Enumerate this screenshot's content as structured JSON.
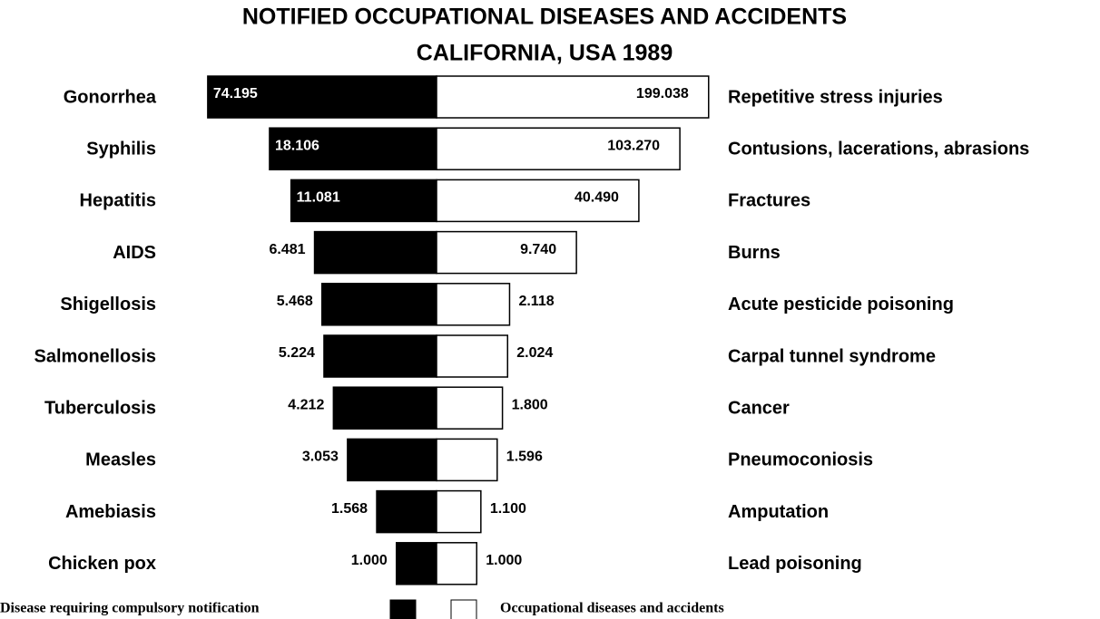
{
  "chart_data": {
    "type": "butterfly",
    "title": "NOTIFIED OCCUPATIONAL DISEASES AND ACCIDENTS",
    "subtitle": "CALIFORNIA, USA 1989",
    "xlim": [
      400,
      200000
    ],
    "log_scale": true,
    "series": [
      {
        "name": "Disease requiring compulsory notification",
        "color": "#000000",
        "side": "left",
        "categories": [
          "Gonorrhea",
          "Syphilis",
          "Hepatitis",
          "AIDS",
          "Shigellosis",
          "Salmonellosis",
          "Tuberculosis",
          "Measles",
          "Amebiasis",
          "Chicken pox"
        ],
        "values": [
          74195,
          18106,
          11081,
          6481,
          5468,
          5224,
          4212,
          3053,
          1568,
          1000
        ],
        "value_labels": [
          "74.195",
          "18.106",
          "11.081",
          "6.481",
          "5.468",
          "5.224",
          "4.212",
          "3.053",
          "1.568",
          "1.000"
        ]
      },
      {
        "name": "Occupational diseases and accidents",
        "color": "#ffffff",
        "side": "right",
        "categories": [
          "Repetitive stress injuries",
          "Contusions, lacerations, abrasions",
          "Fractures",
          "Burns",
          "Acute pesticide poisoning",
          "Carpal tunnel syndrome",
          "Cancer",
          "Pneumoconiosis",
          "Amputation",
          "Lead poisoning"
        ],
        "values": [
          199038,
          103270,
          40490,
          9740,
          2118,
          2024,
          1800,
          1596,
          1100,
          1000
        ],
        "value_labels": [
          "199.038",
          "103.270",
          "40.490",
          "9.740",
          "2.118",
          "2.024",
          "1.800",
          "1.596",
          "1.100",
          "1.000"
        ]
      }
    ]
  }
}
